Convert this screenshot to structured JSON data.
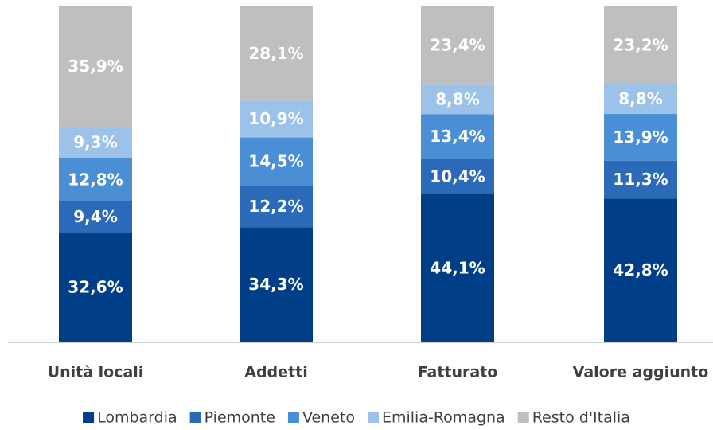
{
  "chart_data": {
    "type": "stacked_bar",
    "categories": [
      "Unità locali",
      "Addetti",
      "Fatturato",
      "Valore aggiunto"
    ],
    "ylim": [
      0,
      100
    ],
    "series": [
      {
        "name": "Lombardia",
        "color": "#003f87",
        "values": [
          32.6,
          34.3,
          44.1,
          42.8
        ],
        "value_labels": [
          "32,6%",
          "34,3%",
          "44,1%",
          "42,8%"
        ]
      },
      {
        "name": "Piemonte",
        "color": "#2a6ab9",
        "values": [
          9.4,
          12.2,
          10.4,
          11.3
        ],
        "value_labels": [
          "9,4%",
          "12,2%",
          "10,4%",
          "11,3%"
        ]
      },
      {
        "name": "Veneto",
        "color": "#4a8ed6",
        "values": [
          12.8,
          14.5,
          13.4,
          13.9
        ],
        "value_labels": [
          "12,8%",
          "14,5%",
          "13,4%",
          "13,9%"
        ]
      },
      {
        "name": "Emilia-Romagna",
        "color": "#9cc2ea",
        "values": [
          9.3,
          10.9,
          8.8,
          8.8
        ],
        "value_labels": [
          "9,3%",
          "10,9%",
          "8,8%",
          "8,8%"
        ]
      },
      {
        "name": "Resto d'Italia",
        "color": "#bfbfbf",
        "values": [
          35.9,
          28.1,
          23.4,
          23.2
        ],
        "value_labels": [
          "35,9%",
          "28,1%",
          "23,4%",
          "23,2%"
        ]
      }
    ]
  }
}
